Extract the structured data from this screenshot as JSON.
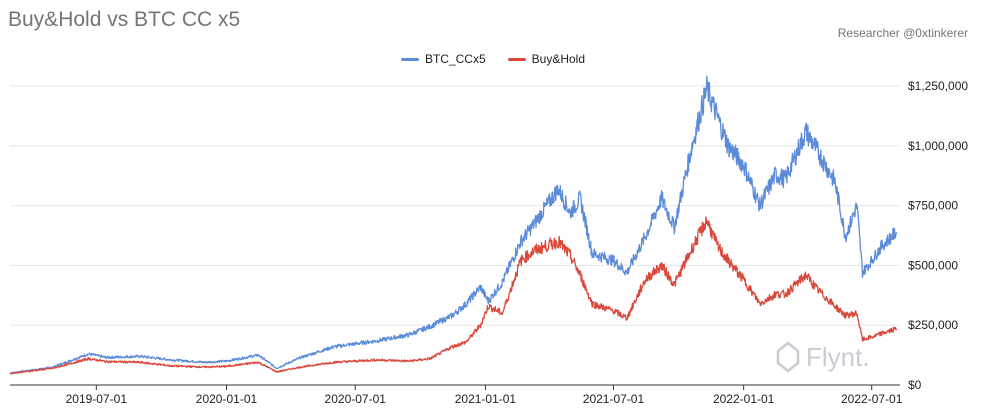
{
  "title": "Buy&Hold vs BTC CC x5",
  "subtitle": "Researcher @0xtinkerer",
  "watermark": "Flynt.",
  "colors": {
    "BTC_CCx5": "#5b8bd9",
    "Buy&Hold": "#d9483b",
    "grid": "#e6e6e6",
    "text": "#222222"
  },
  "chart_data": {
    "type": "line",
    "x_ticks": [
      "2019-07-01",
      "2020-01-01",
      "2020-07-01",
      "2021-01-01",
      "2021-07-01",
      "2022-01-01",
      "2022-07-01"
    ],
    "y_ticks": [
      0,
      250000,
      500000,
      750000,
      1000000,
      1250000
    ],
    "y_tick_labels": [
      "$0",
      "$250,000",
      "$500,000",
      "$750,000",
      "$1,000,000",
      "$1,250,000"
    ],
    "xlim": [
      "2019-03-01",
      "2022-08-10"
    ],
    "ylim": [
      0,
      1250000
    ],
    "legend_position": "top-center",
    "grid": "horizontal",
    "y_axis_side": "right",
    "series": [
      {
        "name": "BTC_CCx5",
        "color": "#5b8bd9",
        "points": [
          [
            "2019-03-01",
            50000
          ],
          [
            "2019-05-01",
            75000
          ],
          [
            "2019-06-20",
            130000
          ],
          [
            "2019-07-15",
            115000
          ],
          [
            "2019-09-01",
            120000
          ],
          [
            "2019-10-15",
            105000
          ],
          [
            "2019-12-01",
            95000
          ],
          [
            "2020-01-01",
            100000
          ],
          [
            "2020-02-15",
            125000
          ],
          [
            "2020-03-12",
            70000
          ],
          [
            "2020-04-15",
            115000
          ],
          [
            "2020-06-01",
            160000
          ],
          [
            "2020-08-01",
            185000
          ],
          [
            "2020-09-15",
            210000
          ],
          [
            "2020-10-15",
            245000
          ],
          [
            "2020-11-15",
            290000
          ],
          [
            "2020-12-05",
            340000
          ],
          [
            "2020-12-25",
            410000
          ],
          [
            "2021-01-05",
            350000
          ],
          [
            "2021-01-25",
            430000
          ],
          [
            "2021-02-20",
            600000
          ],
          [
            "2021-03-10",
            670000
          ],
          [
            "2021-04-14",
            820000
          ],
          [
            "2021-05-01",
            720000
          ],
          [
            "2021-05-15",
            780000
          ],
          [
            "2021-06-01",
            550000
          ],
          [
            "2021-07-01",
            520000
          ],
          [
            "2021-07-20",
            470000
          ],
          [
            "2021-08-15",
            620000
          ],
          [
            "2021-09-07",
            780000
          ],
          [
            "2021-09-25",
            660000
          ],
          [
            "2021-10-20",
            1000000
          ],
          [
            "2021-11-10",
            1240000
          ],
          [
            "2021-11-25",
            1120000
          ],
          [
            "2021-12-10",
            1000000
          ],
          [
            "2022-01-01",
            920000
          ],
          [
            "2022-01-24",
            750000
          ],
          [
            "2022-02-15",
            880000
          ],
          [
            "2022-03-01",
            860000
          ],
          [
            "2022-03-30",
            1060000
          ],
          [
            "2022-04-15",
            980000
          ],
          [
            "2022-05-10",
            850000
          ],
          [
            "2022-05-25",
            620000
          ],
          [
            "2022-06-10",
            750000
          ],
          [
            "2022-06-18",
            470000
          ],
          [
            "2022-07-01",
            520000
          ],
          [
            "2022-07-15",
            580000
          ],
          [
            "2022-08-05",
            640000
          ]
        ]
      },
      {
        "name": "Buy&Hold",
        "color": "#d9483b",
        "points": [
          [
            "2019-03-01",
            48000
          ],
          [
            "2019-05-01",
            70000
          ],
          [
            "2019-06-20",
            110000
          ],
          [
            "2019-07-15",
            98000
          ],
          [
            "2019-09-01",
            95000
          ],
          [
            "2019-10-15",
            80000
          ],
          [
            "2019-12-01",
            75000
          ],
          [
            "2020-01-01",
            78000
          ],
          [
            "2020-02-15",
            95000
          ],
          [
            "2020-03-12",
            55000
          ],
          [
            "2020-04-15",
            75000
          ],
          [
            "2020-06-01",
            95000
          ],
          [
            "2020-08-01",
            105000
          ],
          [
            "2020-09-15",
            100000
          ],
          [
            "2020-10-15",
            110000
          ],
          [
            "2020-11-15",
            160000
          ],
          [
            "2020-12-05",
            180000
          ],
          [
            "2020-12-25",
            250000
          ],
          [
            "2021-01-05",
            330000
          ],
          [
            "2021-01-25",
            300000
          ],
          [
            "2021-02-20",
            520000
          ],
          [
            "2021-03-10",
            560000
          ],
          [
            "2021-04-14",
            600000
          ],
          [
            "2021-05-01",
            540000
          ],
          [
            "2021-05-15",
            460000
          ],
          [
            "2021-06-01",
            340000
          ],
          [
            "2021-07-01",
            310000
          ],
          [
            "2021-07-20",
            280000
          ],
          [
            "2021-08-15",
            440000
          ],
          [
            "2021-09-07",
            500000
          ],
          [
            "2021-09-25",
            420000
          ],
          [
            "2021-10-20",
            570000
          ],
          [
            "2021-11-10",
            690000
          ],
          [
            "2021-11-25",
            580000
          ],
          [
            "2021-12-10",
            520000
          ],
          [
            "2022-01-01",
            440000
          ],
          [
            "2022-01-24",
            340000
          ],
          [
            "2022-02-15",
            380000
          ],
          [
            "2022-03-01",
            380000
          ],
          [
            "2022-03-30",
            460000
          ],
          [
            "2022-04-15",
            400000
          ],
          [
            "2022-05-10",
            330000
          ],
          [
            "2022-05-25",
            290000
          ],
          [
            "2022-06-10",
            300000
          ],
          [
            "2022-06-18",
            190000
          ],
          [
            "2022-07-01",
            200000
          ],
          [
            "2022-07-15",
            215000
          ],
          [
            "2022-08-05",
            235000
          ]
        ]
      }
    ]
  }
}
